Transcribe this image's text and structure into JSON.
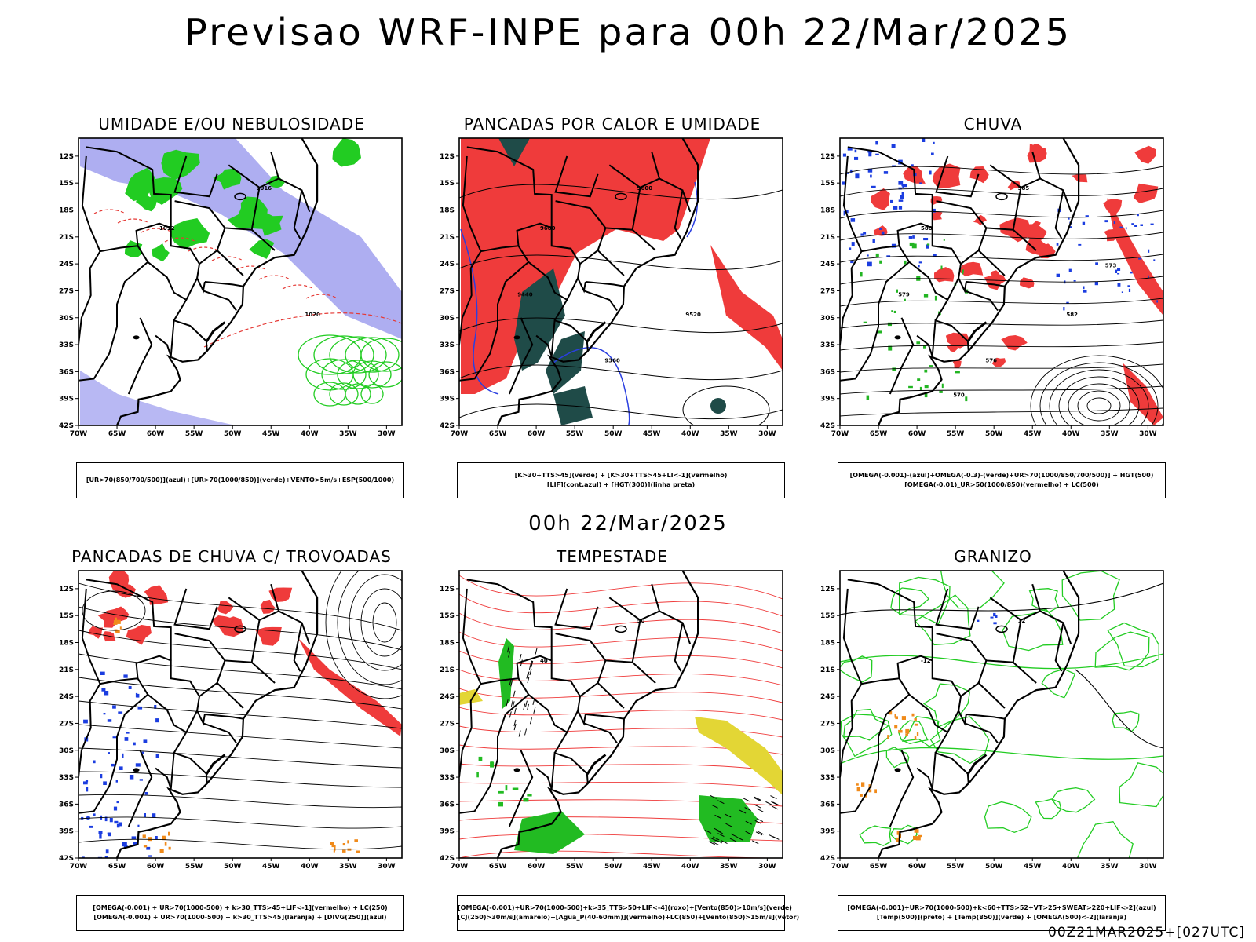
{
  "main_title": "Previsao WRF-INPE  para 00h 22/Mar/2025",
  "mid_title": "00h 22/Mar/2025",
  "footer": "00Z21MAR2025+[027UTC]",
  "axes": {
    "lat_labels": [
      "12S",
      "15S",
      "18S",
      "21S",
      "24S",
      "27S",
      "30S",
      "33S",
      "36S",
      "39S",
      "42S"
    ],
    "lon_labels": [
      "70W",
      "65W",
      "60W",
      "55W",
      "50W",
      "45W",
      "40W",
      "35W",
      "30W"
    ]
  },
  "panels": [
    {
      "title": "UMIDADE E/OU NEBULOSIDADE",
      "legend": [
        "[UR>70(850/700/500)](azul)+[UR>70(1000/850)](verde)+VENTO>5m/s+ESP(500/1000)"
      ],
      "kind": "humidity",
      "contour_labels": [
        "1012",
        "1016",
        "1020"
      ]
    },
    {
      "title": "PANCADAS POR CALOR E UMIDADE",
      "legend": [
        "[K>30+TTS>45](verde) + [K>30+TTS>45+LI<-1](vermelho)",
        "[LIF](cont.azul) + [HGT(300)](linha preta)"
      ],
      "kind": "heat",
      "contour_labels": [
        "9680",
        "9600",
        "9520",
        "9440",
        "9360"
      ]
    },
    {
      "title": "CHUVA",
      "legend": [
        "[OMEGA(-0.001)-(azul)+OMEGA(-0.3)-(verde)+UR>70(1000/850/700/500)] + HGT(500)",
        "[OMEGA(-0.01)_UR>50(1000/850)(vermelho) + LC(500)"
      ],
      "kind": "rain",
      "contour_labels": [
        "588",
        "585",
        "582",
        "579",
        "576",
        "573",
        "570"
      ]
    },
    {
      "title": "PANCADAS DE CHUVA C/ TROVOADAS",
      "legend": [
        "[OMEGA(-0.001) + UR>70(1000-500) + k>30_TTS>45+LIF<-1](vermelho) + LC(250)",
        "[OMEGA(-0.001) + UR>70(1000-500) + k>30_TTS>45](laranja) + [DIVG(250)](azul)"
      ],
      "kind": "storms",
      "contour_labels": []
    },
    {
      "title": "TEMPESTADE",
      "legend": [
        "[OMEGA(-0.001)+UR>70(1000-500)+k>35_TTS>50+LIF<-4](roxo)+[Vento(850)>10m/s](verde)",
        "[CJ(250)>30m/s](amarelo)+[Agua_P(40-60mm)](vermelho)+LC(850)+[Vento(850)>15m/s](vetor)"
      ],
      "kind": "tempest",
      "contour_labels": [
        "40",
        "50"
      ]
    },
    {
      "title": "GRANIZO",
      "legend": [
        "[OMEGA(-0.001)+UR>70(1000-500)+k<60+TTS>52+VT>25+SWEAT>220+LIF<-2](azul)",
        "[Temp(500)](preto) + [Temp(850)](verde) + [OMEGA(500)<-2](laranja)"
      ],
      "kind": "hail",
      "contour_labels": [
        "-12",
        "12"
      ]
    }
  ]
}
